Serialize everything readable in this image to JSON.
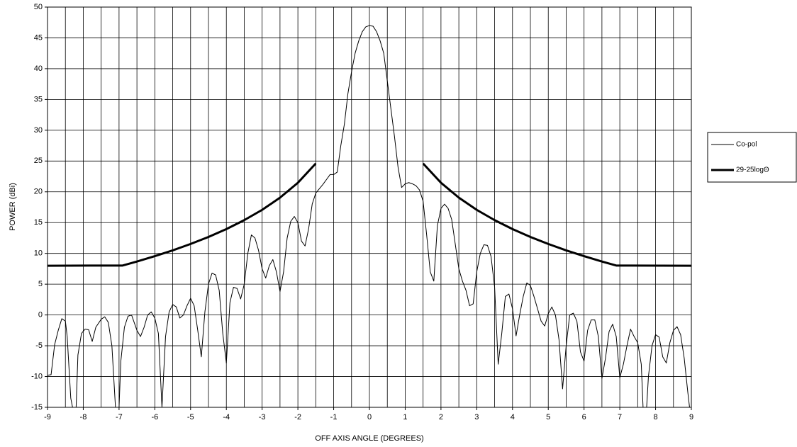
{
  "chart_data": {
    "type": "line",
    "xlabel": "OFF AXIS ANGLE (DEGREES)",
    "ylabel": "POWER (dBi)",
    "xlim": [
      -9,
      9
    ],
    "ylim": [
      -15,
      50
    ],
    "xticks": [
      -9,
      -8,
      -7,
      -6,
      -5,
      -4,
      -3,
      -2,
      -1,
      0,
      1,
      2,
      3,
      4,
      5,
      6,
      7,
      8,
      9
    ],
    "x_minor_ticks": [
      -8.5,
      -7.5,
      -6.5,
      -5.5,
      -4.5,
      -3.5,
      -2.5,
      -1.5,
      -0.5,
      0.5,
      1.5,
      2.5,
      3.5,
      4.5,
      5.5,
      6.5,
      7.5,
      8.5
    ],
    "yticks": [
      -15,
      -10,
      -5,
      0,
      5,
      10,
      15,
      20,
      25,
      30,
      35,
      40,
      45,
      50
    ],
    "grid": true,
    "legend": "right",
    "series": [
      {
        "name": "Co-pol",
        "color": "#000000",
        "line_width": 1,
        "x": [
          -9,
          -8.9,
          -8.8,
          -8.7,
          -8.6,
          -8.5,
          -8.45,
          -8.35,
          -8.3,
          -8.2,
          -8.15,
          -8.05,
          -7.95,
          -7.85,
          -7.75,
          -7.65,
          -7.5,
          -7.4,
          -7.3,
          -7.2,
          -7.1,
          -7.0,
          -6.95,
          -6.85,
          -6.75,
          -6.65,
          -6.5,
          -6.4,
          -6.3,
          -6.2,
          -6.1,
          -6.0,
          -5.9,
          -5.8,
          -5.7,
          -5.6,
          -5.5,
          -5.4,
          -5.3,
          -5.2,
          -5.1,
          -5.0,
          -4.9,
          -4.8,
          -4.7,
          -4.6,
          -4.5,
          -4.4,
          -4.3,
          -4.2,
          -4.1,
          -4.0,
          -3.9,
          -3.8,
          -3.7,
          -3.6,
          -3.5,
          -3.4,
          -3.3,
          -3.2,
          -3.1,
          -3.0,
          -2.9,
          -2.8,
          -2.7,
          -2.6,
          -2.5,
          -2.4,
          -2.3,
          -2.2,
          -2.1,
          -2.0,
          -1.9,
          -1.8,
          -1.7,
          -1.6,
          -1.5,
          -1.4,
          -1.3,
          -1.2,
          -1.1,
          -1.0,
          -0.9,
          -0.8,
          -0.7,
          -0.6,
          -0.5,
          -0.4,
          -0.3,
          -0.2,
          -0.1,
          0,
          0.1,
          0.2,
          0.3,
          0.4,
          0.5,
          0.6,
          0.7,
          0.8,
          0.9,
          1.0,
          1.1,
          1.2,
          1.3,
          1.4,
          1.5,
          1.6,
          1.7,
          1.8,
          1.9,
          2.0,
          2.1,
          2.2,
          2.3,
          2.4,
          2.5,
          2.6,
          2.7,
          2.8,
          2.9,
          3.0,
          3.1,
          3.2,
          3.3,
          3.4,
          3.5,
          3.6,
          3.7,
          3.8,
          3.9,
          4.0,
          4.1,
          4.2,
          4.3,
          4.4,
          4.5,
          4.6,
          4.7,
          4.8,
          4.9,
          5.0,
          5.1,
          5.2,
          5.3,
          5.4,
          5.5,
          5.6,
          5.7,
          5.8,
          5.9,
          6.0,
          6.1,
          6.2,
          6.3,
          6.4,
          6.5,
          6.6,
          6.7,
          6.8,
          6.9,
          7.0,
          7.1,
          7.2,
          7.3,
          7.4,
          7.5,
          7.6,
          7.65,
          7.75,
          7.8,
          7.9,
          8.0,
          8.1,
          8.2,
          8.3,
          8.4,
          8.5,
          8.6,
          8.7,
          8.8,
          8.9,
          8.95
        ],
        "values": [
          -9.8,
          -9.7,
          -4.8,
          -2.5,
          -0.6,
          -1,
          -3.5,
          -13.5,
          -15,
          -15,
          -6.5,
          -3,
          -2.3,
          -2.4,
          -4.3,
          -2,
          -0.7,
          -0.3,
          -1.2,
          -5,
          -15,
          -15,
          -7.5,
          -2,
          -0.2,
          0,
          -2.5,
          -3.5,
          -2,
          0,
          0.5,
          -0.5,
          -3,
          -15,
          -3.5,
          0.5,
          1.7,
          1.3,
          -0.5,
          0,
          1.5,
          2.7,
          1.5,
          -2.5,
          -6.8,
          0.5,
          5,
          6.8,
          6.5,
          4,
          -3,
          -7.8,
          2,
          4.5,
          4.3,
          2.6,
          5,
          10,
          13,
          12.5,
          10.5,
          7.5,
          6,
          8,
          9,
          7,
          3.8,
          7,
          12.5,
          15.2,
          16,
          15,
          12,
          11.2,
          14,
          18,
          19.8,
          20.5,
          21.2,
          22,
          22.8,
          22.8,
          23.2,
          27.5,
          31,
          36,
          39.5,
          42.5,
          44.5,
          46,
          46.8,
          47,
          46.9,
          46,
          44.5,
          42.5,
          38,
          33.5,
          29,
          24,
          20.7,
          21.3,
          21.5,
          21.3,
          21,
          20.3,
          18.5,
          13,
          7,
          5.5,
          14.5,
          17.3,
          18,
          17.3,
          15.5,
          11.5,
          7.5,
          5.5,
          4,
          1.5,
          1.8,
          7,
          10,
          11.4,
          11.3,
          9.5,
          4.5,
          -8,
          -3,
          3,
          3.4,
          1,
          -3.4,
          0,
          3,
          5.2,
          4.8,
          3,
          1,
          -1,
          -1.8,
          0.2,
          1.3,
          0,
          -4,
          -12,
          -5,
          0,
          0.3,
          -1,
          -6,
          -7.5,
          -2.5,
          -0.8,
          -0.8,
          -3.5,
          -10.3,
          -7,
          -2.7,
          -1.5,
          -3.5,
          -10.2,
          -8,
          -5,
          -2.3,
          -3.5,
          -4.5,
          -8,
          -15,
          -15,
          -10,
          -5,
          -3.2,
          -3.6,
          -6.8,
          -7.8,
          -4.5,
          -2.5,
          -1.9,
          -3.2,
          -7,
          -12.5,
          -15
        ]
      },
      {
        "name": "29-25logΘ",
        "color": "#000000",
        "line_width": 3,
        "x": [
          -9,
          -6.9,
          -6.5,
          -6,
          -5.5,
          -5,
          -4.5,
          -4,
          -3.5,
          -3,
          -2.5,
          -2,
          -1.5,
          0,
          1.5,
          2,
          2.5,
          3,
          3.5,
          4,
          4.5,
          5,
          5.5,
          6,
          6.5,
          6.9,
          9
        ],
        "values": [
          8,
          8.03,
          8.68,
          9.55,
          10.49,
          11.53,
          12.67,
          13.95,
          15.4,
          17.07,
          19.05,
          21.47,
          24.6,
          null,
          24.6,
          21.47,
          19.05,
          17.07,
          15.4,
          13.95,
          12.67,
          11.53,
          10.49,
          9.55,
          8.68,
          8.03,
          8
        ]
      }
    ]
  }
}
